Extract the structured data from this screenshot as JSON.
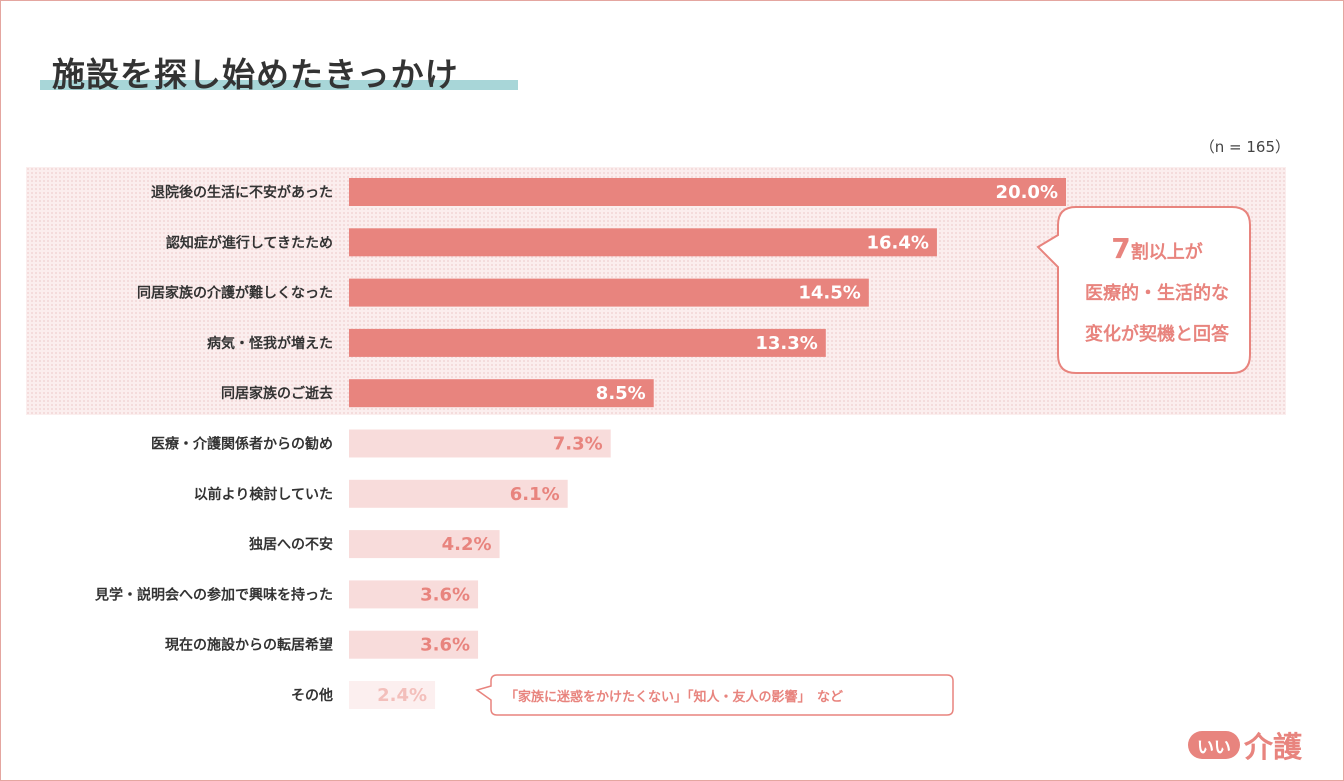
{
  "title": "施設を探し始めたきっかけ",
  "n_label": "（n = 165）",
  "chart_data": {
    "type": "bar",
    "orientation": "horizontal",
    "title": "施設を探し始めたきっかけ",
    "sample_size": "n = 165",
    "categories": [
      "退院後の生活に不安があった",
      "認知症が進行してきたため",
      "同居家族の介護が難しくなった",
      "病気・怪我が増えた",
      "同居家族のご逝去",
      "医療・介護関係者からの勧め",
      "以前より検討していた",
      "独居への不安",
      "見学・説明会への参加で興味を持った",
      "現在の施設からの転居希望",
      "その他"
    ],
    "values": [
      20.0,
      16.4,
      14.5,
      13.3,
      8.5,
      7.3,
      6.1,
      4.2,
      3.6,
      3.6,
      2.4
    ],
    "value_labels": [
      "20.0%",
      "16.4%",
      "14.5%",
      "13.3%",
      "8.5%",
      "7.3%",
      "6.1%",
      "4.2%",
      "3.6%",
      "3.6%",
      "2.4%"
    ],
    "unit": "%",
    "highlighted_count": 5,
    "colors": {
      "highlight_bar": "#e8847e",
      "normal_bar": "#f8dcdb",
      "other_bar": "#fcefef",
      "highlight_value_text": "#ffffff",
      "normal_value_text": "#e8847e",
      "other_value_text": "#f3bfbb"
    }
  },
  "callout": {
    "line1_big": "7",
    "line1_rest": "割以上が",
    "line2": "医療的・生活的な",
    "line3": "変化が契機と回答"
  },
  "note": "「家族に迷惑をかけたくない」「知人・友人の影響」　など",
  "logo": {
    "badge": "いい",
    "text": "介護"
  }
}
